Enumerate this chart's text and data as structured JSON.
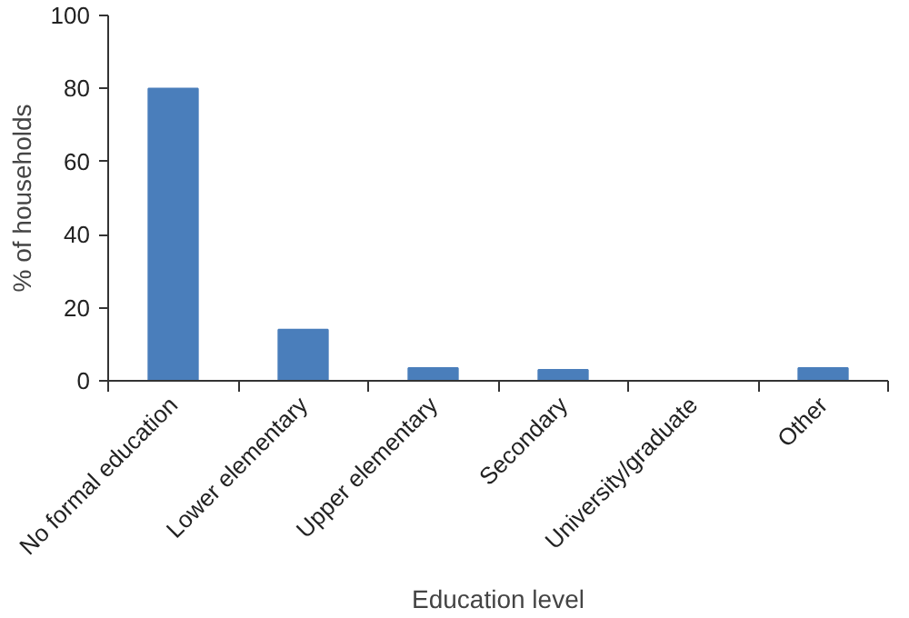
{
  "chart_data": {
    "type": "bar",
    "xlabel": "Education level",
    "ylabel": "% of households",
    "categories": [
      "No formal education",
      "Lower elementary",
      "Upper elementary",
      "Secondary",
      "University/graduate",
      "Other"
    ],
    "values": [
      80,
      14,
      3.5,
      3,
      0,
      3.5
    ],
    "color": "#4a7ebb",
    "ylim": [
      0,
      100
    ],
    "yticks": [
      0,
      20,
      40,
      60,
      80,
      100
    ],
    "grid": false
  }
}
